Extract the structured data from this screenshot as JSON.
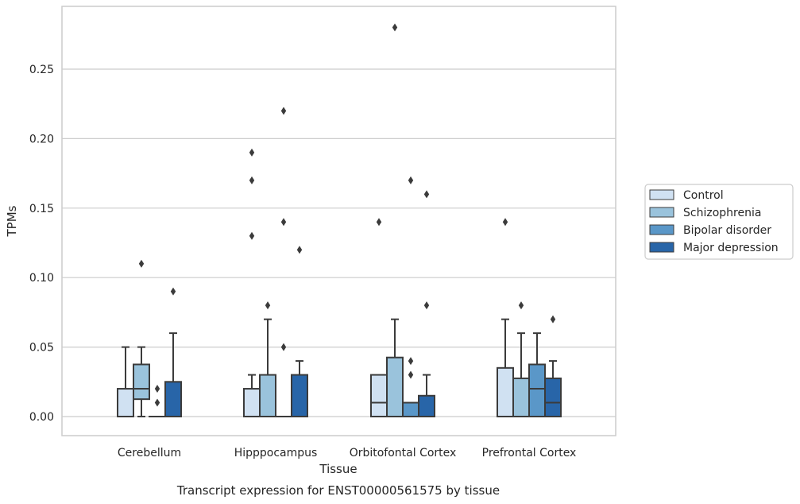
{
  "chart_data": {
    "type": "box",
    "xlabel": "Tissue",
    "ylabel": "TPMs",
    "caption": "Transcript expression for ENST00000561575 by tissue",
    "ylim": [
      -0.014,
      0.295
    ],
    "yticks": [
      0.0,
      0.05,
      0.1,
      0.15,
      0.2,
      0.25
    ],
    "ytick_labels": [
      "0.00",
      "0.05",
      "0.10",
      "0.15",
      "0.20",
      "0.25"
    ],
    "grid": "horizontal",
    "legend_position": "right",
    "categories": [
      "Cerebellum",
      "Hipppocampus",
      "Orbitofontal Cortex",
      "Prefrontal Cortex"
    ],
    "series": [
      {
        "name": "Control",
        "color": "#d0e1f2",
        "boxes": [
          {
            "q1": 0.0,
            "median": 0.0,
            "q3": 0.02,
            "whisker_low": 0.0,
            "whisker_high": 0.05,
            "outliers": []
          },
          {
            "q1": 0.0,
            "median": 0.0,
            "q3": 0.02,
            "whisker_low": 0.0,
            "whisker_high": 0.03,
            "outliers": [
              0.13,
              0.17,
              0.19
            ]
          },
          {
            "q1": 0.0,
            "median": 0.01,
            "q3": 0.03,
            "whisker_low": 0.0,
            "whisker_high": 0.03,
            "outliers": [
              0.14
            ]
          },
          {
            "q1": 0.0,
            "median": 0.0,
            "q3": 0.035,
            "whisker_low": 0.0,
            "whisker_high": 0.07,
            "outliers": [
              0.14
            ]
          }
        ]
      },
      {
        "name": "Schizophrenia",
        "color": "#9ac3dc",
        "boxes": [
          {
            "q1": 0.0125,
            "median": 0.02,
            "q3": 0.0375,
            "whisker_low": 0.0,
            "whisker_high": 0.05,
            "outliers": [
              0.11
            ]
          },
          {
            "q1": 0.0,
            "median": 0.0,
            "q3": 0.03,
            "whisker_low": 0.0,
            "whisker_high": 0.07,
            "outliers": [
              0.08
            ]
          },
          {
            "q1": 0.0,
            "median": 0.0,
            "q3": 0.0425,
            "whisker_low": 0.0,
            "whisker_high": 0.07,
            "outliers": [
              0.28
            ]
          },
          {
            "q1": 0.0,
            "median": 0.0,
            "q3": 0.0275,
            "whisker_low": 0.0,
            "whisker_high": 0.06,
            "outliers": [
              0.08
            ]
          }
        ]
      },
      {
        "name": "Bipolar disorder",
        "color": "#5a97c8",
        "boxes": [
          {
            "q1": 0.0,
            "median": 0.0,
            "q3": 0.0,
            "whisker_low": 0.0,
            "whisker_high": 0.0,
            "outliers": [
              0.01,
              0.02
            ]
          },
          {
            "q1": 0.0,
            "median": 0.0,
            "q3": 0.0,
            "whisker_low": 0.0,
            "whisker_high": 0.0,
            "outliers": [
              0.05,
              0.14,
              0.22
            ]
          },
          {
            "q1": 0.0,
            "median": 0.0,
            "q3": 0.01,
            "whisker_low": 0.0,
            "whisker_high": 0.01,
            "outliers": [
              0.03,
              0.04,
              0.17
            ]
          },
          {
            "q1": 0.0,
            "median": 0.02,
            "q3": 0.0375,
            "whisker_low": 0.0,
            "whisker_high": 0.06,
            "outliers": []
          }
        ]
      },
      {
        "name": "Major depression",
        "color": "#2865a8",
        "boxes": [
          {
            "q1": 0.0,
            "median": 0.0,
            "q3": 0.025,
            "whisker_low": 0.0,
            "whisker_high": 0.06,
            "outliers": [
              0.09
            ]
          },
          {
            "q1": 0.0,
            "median": 0.0,
            "q3": 0.03,
            "whisker_low": 0.0,
            "whisker_high": 0.04,
            "outliers": [
              0.12
            ]
          },
          {
            "q1": 0.0,
            "median": 0.0,
            "q3": 0.015,
            "whisker_low": 0.0,
            "whisker_high": 0.03,
            "outliers": [
              0.08,
              0.16
            ]
          },
          {
            "q1": 0.0,
            "median": 0.01,
            "q3": 0.0275,
            "whisker_low": 0.0,
            "whisker_high": 0.04,
            "outliers": [
              0.07
            ]
          }
        ]
      }
    ]
  }
}
